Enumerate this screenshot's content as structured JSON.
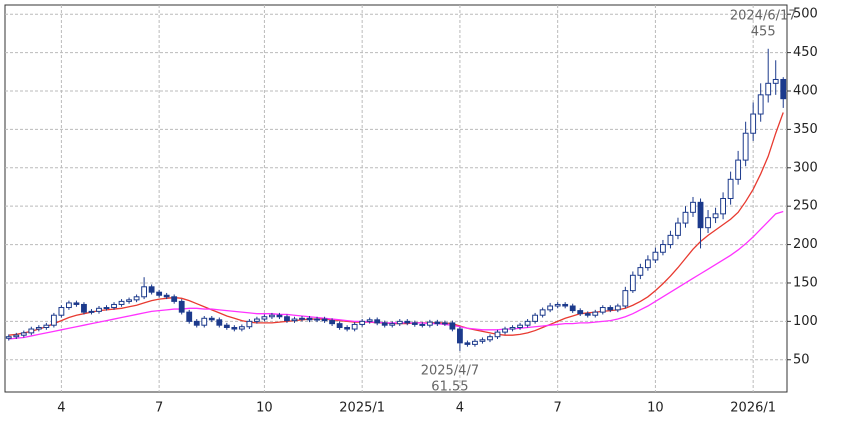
{
  "chart_data": {
    "type": "candlestick",
    "categories": [
      null,
      null,
      null,
      null,
      null,
      null,
      null,
      "4",
      null,
      null,
      null,
      null,
      null,
      null,
      null,
      null,
      null,
      null,
      null,
      null,
      "7",
      null,
      null,
      null,
      null,
      null,
      null,
      null,
      null,
      null,
      null,
      null,
      null,
      null,
      "10",
      null,
      null,
      null,
      null,
      null,
      null,
      null,
      null,
      null,
      null,
      null,
      null,
      "2025/1",
      null,
      null,
      null,
      null,
      null,
      null,
      null,
      null,
      null,
      null,
      null,
      null,
      "4",
      null,
      null,
      null,
      null,
      null,
      null,
      null,
      null,
      null,
      null,
      null,
      null,
      "7",
      null,
      null,
      null,
      null,
      null,
      null,
      null,
      null,
      null,
      null,
      null,
      null,
      "10",
      null,
      null,
      null,
      null,
      null,
      null,
      null,
      null,
      null,
      null,
      null,
      null,
      "2026/1",
      null,
      null,
      null,
      null
    ],
    "open": [
      78,
      80,
      82,
      85,
      90,
      92,
      95,
      108,
      118,
      124,
      122,
      112,
      113,
      117,
      118,
      122,
      126,
      128,
      132,
      145,
      138,
      134,
      132,
      126,
      112,
      100,
      95,
      104,
      102,
      95,
      92,
      90,
      93,
      100,
      103,
      106,
      108,
      106,
      101,
      103,
      104,
      102,
      103,
      101,
      97,
      92,
      90,
      96,
      100,
      102,
      98,
      95,
      97,
      100,
      98,
      96,
      95,
      99,
      97,
      98,
      90,
      72,
      70,
      74,
      76,
      80,
      86,
      90,
      92,
      95,
      100,
      108,
      115,
      120,
      122,
      120,
      114,
      110,
      108,
      112,
      118,
      115,
      120,
      140,
      160,
      170,
      180,
      190,
      200,
      212,
      228,
      242,
      255,
      222,
      235,
      240,
      260,
      285,
      310,
      345,
      370,
      395,
      410,
      415
    ],
    "high": [
      83,
      85,
      88,
      93,
      95,
      98,
      111,
      121,
      127,
      127,
      125,
      116,
      120,
      121,
      125,
      129,
      131,
      135,
      157.5,
      148,
      141,
      137,
      135,
      129,
      115,
      103,
      107,
      107,
      105,
      98,
      95,
      96,
      103,
      106,
      109,
      111,
      111,
      109,
      106,
      107,
      107,
      106,
      106,
      104,
      100,
      95,
      99,
      103,
      105,
      105,
      101,
      100,
      103,
      103,
      101,
      99,
      102,
      102,
      101,
      101,
      93,
      75,
      77,
      79,
      83,
      89,
      93,
      95,
      98,
      103,
      111,
      118,
      124,
      125,
      125,
      123,
      117,
      113,
      115,
      121,
      121,
      123,
      145,
      165,
      175,
      186,
      196,
      206,
      218,
      235,
      250,
      262,
      260,
      245,
      248,
      268,
      295,
      322,
      360,
      385,
      410,
      455,
      440,
      418
    ],
    "low": [
      75,
      77,
      79,
      82,
      87,
      89,
      92,
      105,
      115,
      119,
      109,
      109,
      110,
      114,
      115,
      119,
      123,
      125,
      129,
      135,
      131,
      129,
      123,
      109,
      97,
      92,
      92,
      99,
      92,
      89,
      87,
      87,
      90,
      97,
      100,
      103,
      103,
      98,
      98,
      100,
      99,
      99,
      98,
      94,
      89,
      87,
      87,
      93,
      97,
      95,
      92,
      92,
      94,
      95,
      93,
      92,
      92,
      94,
      94,
      87,
      61.55,
      67,
      67,
      71,
      73,
      77,
      83,
      87,
      89,
      92,
      97,
      105,
      112,
      117,
      117,
      111,
      107,
      105,
      105,
      109,
      112,
      112,
      117,
      137,
      155,
      166,
      176,
      186,
      195,
      207,
      222,
      236,
      195,
      215,
      228,
      233,
      252,
      278,
      302,
      335,
      360,
      385,
      395,
      378
    ],
    "close": [
      80,
      82,
      85,
      90,
      92,
      95,
      108,
      118,
      124,
      122,
      112,
      113,
      117,
      118,
      122,
      126,
      128,
      132,
      145,
      138,
      134,
      132,
      126,
      112,
      100,
      95,
      104,
      102,
      95,
      92,
      90,
      93,
      100,
      103,
      106,
      108,
      106,
      101,
      103,
      104,
      102,
      103,
      101,
      97,
      92,
      90,
      96,
      100,
      102,
      98,
      95,
      97,
      100,
      98,
      96,
      95,
      99,
      97,
      98,
      90,
      72,
      70,
      74,
      76,
      80,
      86,
      90,
      92,
      95,
      100,
      108,
      115,
      120,
      122,
      120,
      114,
      110,
      108,
      112,
      118,
      115,
      120,
      140,
      160,
      170,
      180,
      190,
      200,
      212,
      228,
      242,
      255,
      222,
      235,
      240,
      260,
      285,
      310,
      345,
      370,
      395,
      410,
      415,
      390
    ],
    "up_color": "#ffffff",
    "down_color": "#1c3a8c",
    "candle_stroke": "#1c3a8c",
    "series": [
      {
        "color": "#e83a30",
        "values": [
          82,
          83,
          85,
          87,
          90,
          93,
          97,
          101,
          105,
          108,
          110,
          112,
          114,
          115,
          116,
          117,
          119,
          121,
          124,
          127,
          129,
          130,
          131,
          130,
          127,
          123,
          119,
          115,
          111,
          107,
          104,
          101,
          99,
          98,
          98,
          98,
          99,
          100,
          101,
          102,
          103,
          103,
          103,
          102,
          101,
          100,
          99,
          99,
          99,
          98,
          98,
          97,
          97,
          97,
          98,
          98,
          98,
          98,
          98,
          97,
          94,
          91,
          89,
          87,
          85,
          83,
          82,
          82,
          83,
          85,
          88,
          92,
          96,
          100,
          104,
          107,
          110,
          111,
          112,
          113,
          114,
          115,
          117,
          121,
          126,
          132,
          140,
          149,
          159,
          170,
          182,
          194,
          204,
          212,
          219,
          226,
          233,
          242,
          256,
          272,
          292,
          315,
          345,
          372
        ]
      },
      {
        "color": "#ff33ff",
        "values": [
          77,
          78,
          79,
          81,
          83,
          85,
          87,
          89,
          91,
          93,
          95,
          97,
          99,
          101,
          103,
          105,
          107,
          109,
          111,
          113,
          114,
          115,
          116,
          116,
          117,
          117,
          116,
          116,
          115,
          114,
          113,
          112,
          111,
          110,
          110,
          110,
          109,
          109,
          108,
          107,
          106,
          105,
          104,
          103,
          102,
          101,
          100,
          100,
          99,
          99,
          98,
          98,
          98,
          98,
          98,
          98,
          97,
          97,
          96,
          95,
          93,
          91,
          90,
          89,
          89,
          89,
          90,
          90,
          91,
          92,
          93,
          94,
          95,
          96,
          97,
          97,
          98,
          98,
          99,
          100,
          101,
          103,
          106,
          110,
          115,
          120,
          126,
          132,
          138,
          144,
          150,
          156,
          162,
          168,
          174,
          180,
          186,
          193,
          201,
          210,
          220,
          230,
          240,
          243
        ]
      }
    ],
    "annotations": {
      "max": "2024/6/17",
      "min": "2025/4/7"
    },
    "ylim": [
      8,
      512
    ],
    "yticks": [
      50,
      100,
      150,
      200,
      250,
      300,
      350,
      400,
      450,
      500
    ],
    "grid": true
  }
}
